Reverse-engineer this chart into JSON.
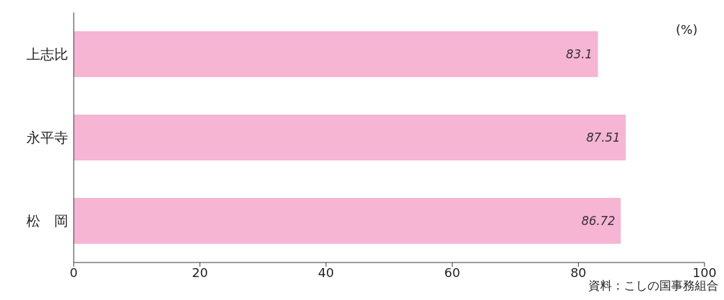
{
  "chart_data": {
    "type": "bar",
    "orientation": "horizontal",
    "categories": [
      "上志比",
      "永平寺",
      "松　岡"
    ],
    "values": [
      83.1,
      87.51,
      86.72
    ],
    "color": "#f5b5d3",
    "xlim": [
      0,
      100
    ],
    "xticks": [
      0,
      20,
      40,
      60,
      80,
      100
    ],
    "data_labels": true,
    "annotations": [
      "(%)",
      "資料：こしの国事務組合"
    ]
  }
}
